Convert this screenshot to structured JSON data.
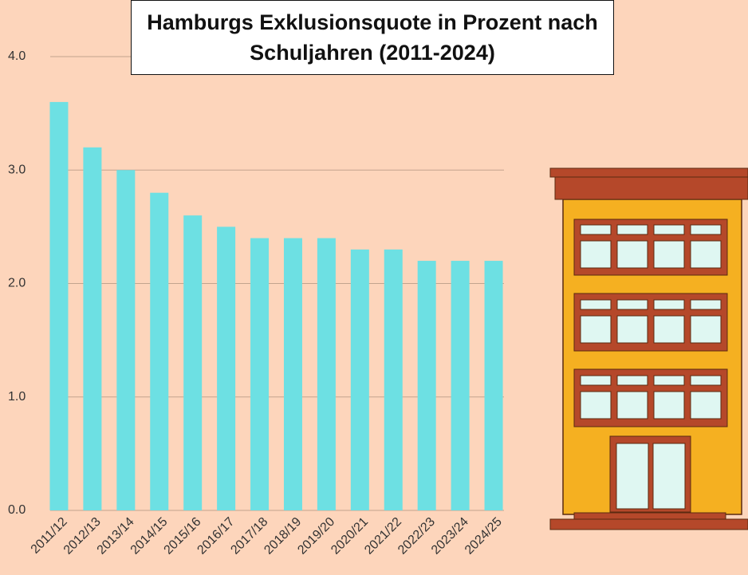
{
  "chart_data": {
    "type": "bar",
    "title": "Hamburgs Exklusionsquote in Prozent nach Schuljahren (2011-2024)",
    "categories": [
      "2011/12",
      "2012/13",
      "2013/14",
      "2014/15",
      "2015/16",
      "2016/17",
      "2017/18",
      "2018/19",
      "2019/20",
      "2020/21",
      "2021/22",
      "2022/23",
      "2023/24",
      "2024/25"
    ],
    "values": [
      3.6,
      3.2,
      3.0,
      2.8,
      2.6,
      2.5,
      2.4,
      2.4,
      2.4,
      2.3,
      2.3,
      2.2,
      2.2,
      2.2
    ],
    "color": "#6de0e3",
    "ylim": [
      0,
      4
    ],
    "yticks": [
      {
        "value": 0,
        "label": "0.0"
      },
      {
        "value": 1,
        "label": "1.0"
      },
      {
        "value": 2,
        "label": "2.0"
      },
      {
        "value": 3,
        "label": "3.0"
      },
      {
        "value": 4,
        "label": "4.0"
      }
    ],
    "grid": true
  }
}
